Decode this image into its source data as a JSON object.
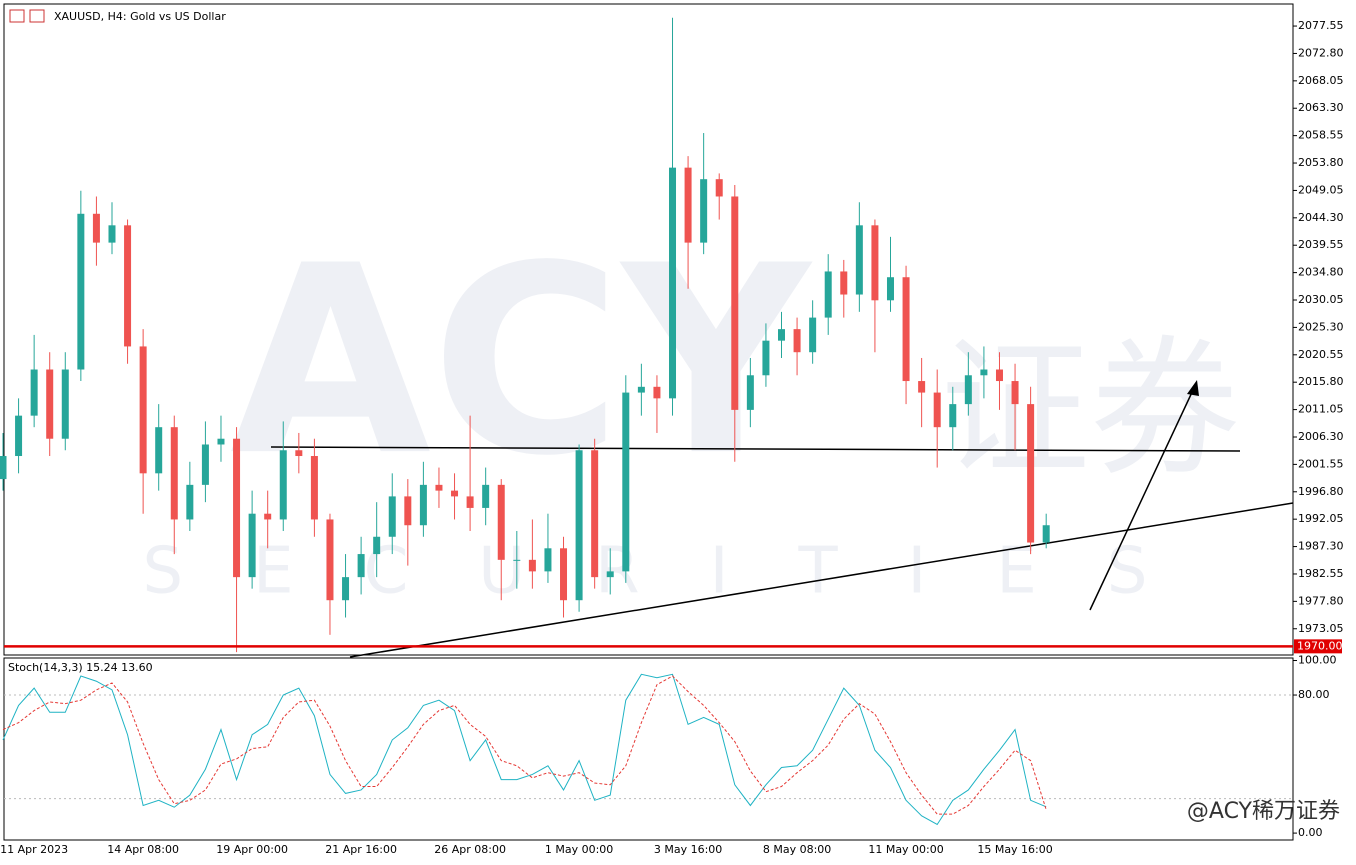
{
  "chart_data": [
    {
      "type": "candlestick",
      "title": "XAUUSD, H4:  Gold vs US Dollar",
      "categories": [
        null,
        null,
        "11 Apr 2023",
        null,
        null,
        null,
        null,
        null,
        null,
        "14 Apr 08:00",
        null,
        null,
        null,
        null,
        null,
        null,
        "19 Apr 00:00",
        null,
        null,
        null,
        null,
        null,
        null,
        "21 Apr 16:00",
        null,
        null,
        null,
        null,
        null,
        null,
        "26 Apr 08:00",
        null,
        null,
        null,
        null,
        null,
        null,
        "1 May 00:00",
        null,
        null,
        null,
        null,
        null,
        null,
        "3 May 16:00",
        null,
        null,
        null,
        null,
        null,
        null,
        "8 May 08:00",
        null,
        null,
        null,
        null,
        null,
        null,
        "11 May 00:00",
        null,
        null,
        null,
        null,
        null,
        null,
        "15 May 16:00",
        null,
        null
      ],
      "open": [
        1999,
        2003,
        2010,
        2018,
        2006,
        2018,
        2045,
        2040,
        2043,
        2022,
        2000,
        2008,
        1992,
        1998,
        2005,
        2006,
        1982,
        1993,
        1992,
        2004,
        2003,
        1992,
        1978,
        1982,
        1986,
        1989,
        1996,
        1991,
        1998,
        1997,
        1996,
        1994,
        1998,
        1985,
        1985,
        1983,
        1987,
        1978,
        2004,
        1982,
        1983,
        2014,
        2015,
        2013,
        2053,
        2040,
        2051,
        2048,
        2011,
        2017,
        2023,
        2025,
        2021,
        2027,
        2035,
        2031,
        2043,
        2030,
        2034,
        2016,
        2014,
        2008,
        2012,
        2017,
        2018,
        2016,
        2012,
        1988
      ],
      "high": [
        2007,
        2013,
        2024,
        2021,
        2021,
        2049,
        2048,
        2047,
        2044,
        2025,
        2012,
        2010,
        2002,
        2009,
        2010,
        2008,
        1997,
        1997,
        2009,
        2007,
        2006,
        1993,
        1986,
        1989,
        1995,
        2000,
        1999,
        2002,
        2001,
        2000,
        2010,
        2001,
        1999,
        1990,
        1992,
        1993,
        1989,
        2005,
        2006,
        1987,
        2017,
        2019,
        2017,
        2079,
        2055,
        2059,
        2052,
        2050,
        2020,
        2026,
        2028,
        2027,
        2030,
        2038,
        2037,
        2047,
        2044,
        2041,
        2036,
        2020,
        2018,
        2015,
        2021,
        2022,
        2021,
        2019,
        2015,
        1993
      ],
      "low": [
        1997,
        2000,
        2008,
        2003,
        2004,
        2016,
        2036,
        2038,
        2019,
        1993,
        1997,
        1986,
        1990,
        1995,
        2002,
        1969,
        1980,
        1987,
        1990,
        2000,
        1989,
        1972,
        1975,
        1979,
        1982,
        1986,
        1984,
        1989,
        1994,
        1992,
        1990,
        1991,
        1978,
        1980,
        1980,
        1981,
        1975,
        1976,
        1980,
        1979,
        1981,
        2010,
        2007,
        2010,
        2032,
        2038,
        2044,
        2002,
        2008,
        2015,
        2020,
        2017,
        2019,
        2024,
        2027,
        2028,
        2021,
        2028,
        2012,
        2008,
        2001,
        2004,
        2010,
        2013,
        2011,
        2004,
        1986,
        1987
      ],
      "close": [
        2003,
        2010,
        2018,
        2006,
        2018,
        2045,
        2040,
        2043,
        2022,
        2000,
        2008,
        1992,
        1998,
        2005,
        2006,
        1982,
        1993,
        1992,
        2004,
        2003,
        1992,
        1978,
        1982,
        1986,
        1989,
        1996,
        1991,
        1998,
        1997,
        1996,
        1994,
        1998,
        1985,
        1985,
        1983,
        1987,
        1978,
        2004,
        1982,
        1983,
        2014,
        2015,
        2013,
        2053,
        2040,
        2051,
        2048,
        2011,
        2017,
        2023,
        2025,
        2021,
        2027,
        2035,
        2031,
        2043,
        2030,
        2034,
        2016,
        2014,
        2008,
        2012,
        2017,
        2018,
        2016,
        2012,
        1988,
        1991
      ],
      "up_color": "#26a69a",
      "down_color": "#ef5350",
      "ylim": [
        1968.5,
        2081.2
      ],
      "yticks": [
        2077.55,
        {
          "value": 2072.8,
          "label": "2072.80"
        },
        2068.05,
        {
          "value": 2063.3,
          "label": "2063.30"
        },
        2058.55,
        {
          "value": 2053.8,
          "label": "2053.80"
        },
        2049.05,
        {
          "value": 2044.3,
          "label": "2044.30"
        },
        2039.55,
        {
          "value": 2034.8,
          "label": "2034.80"
        },
        2030.05,
        {
          "value": 2025.3,
          "label": "2025.30"
        },
        2020.55,
        {
          "value": 2015.8,
          "label": "2015.80"
        },
        2011.05,
        {
          "value": 2006.3,
          "label": "2006.30"
        },
        2001.55,
        {
          "value": 1996.8,
          "label": "1996.80"
        },
        1992.05,
        {
          "value": 1987.3,
          "label": "1987.30"
        },
        1982.55,
        {
          "value": 1977.8,
          "label": "1977.80"
        },
        1973.05
      ],
      "price_line": {
        "value": 1970,
        "label": "1970.00",
        "color": "#e00000"
      },
      "watermark": {
        "logo": "ACY",
        "cjk": "证券",
        "sub": "SECURITIES"
      },
      "credit": "@ACY稀万证券"
    },
    {
      "type": "line",
      "title": "Stoch(14,3,3) 15.24 13.60",
      "ylim": [
        -4,
        100.3
      ],
      "yticks": [
        {
          "value": 100,
          "label": "100.00"
        },
        {
          "value": 80,
          "label": "80.00"
        },
        {
          "value": 0,
          "label": "0.00"
        }
      ],
      "levels": [
        80,
        20
      ],
      "series": [
        {
          "color": "#1fb3c4",
          "dash": false,
          "values": [
            54,
            74,
            84,
            70,
            70,
            91,
            88,
            83,
            57,
            16,
            19,
            15,
            22,
            37,
            60,
            31,
            57,
            63,
            80,
            84,
            68,
            34,
            23,
            25,
            34,
            54,
            61,
            74,
            77,
            71,
            42,
            54,
            31,
            31,
            34,
            39,
            25,
            42,
            19,
            22,
            77,
            92,
            90,
            92,
            63,
            67,
            63,
            28,
            16,
            28,
            38,
            39,
            48,
            66,
            84,
            74,
            48,
            38,
            19,
            10,
            5,
            19,
            25,
            37,
            48,
            60,
            19,
            15.24
          ]
        },
        {
          "color": "#e53935",
          "dash": true,
          "values": [
            60,
            64,
            71,
            76,
            75,
            77,
            83,
            87,
            76,
            52,
            31,
            17,
            19,
            25,
            40,
            43,
            49,
            50,
            67,
            76,
            77,
            62,
            42,
            27,
            27,
            38,
            50,
            63,
            71,
            74,
            63,
            56,
            42,
            39,
            32,
            35,
            33,
            35,
            29,
            28,
            39,
            64,
            86,
            91,
            82,
            74,
            64,
            53,
            36,
            24,
            27,
            35,
            42,
            51,
            66,
            75,
            69,
            53,
            35,
            22,
            11,
            11,
            16,
            27,
            37,
            48,
            42,
            13.6
          ]
        }
      ]
    }
  ]
}
